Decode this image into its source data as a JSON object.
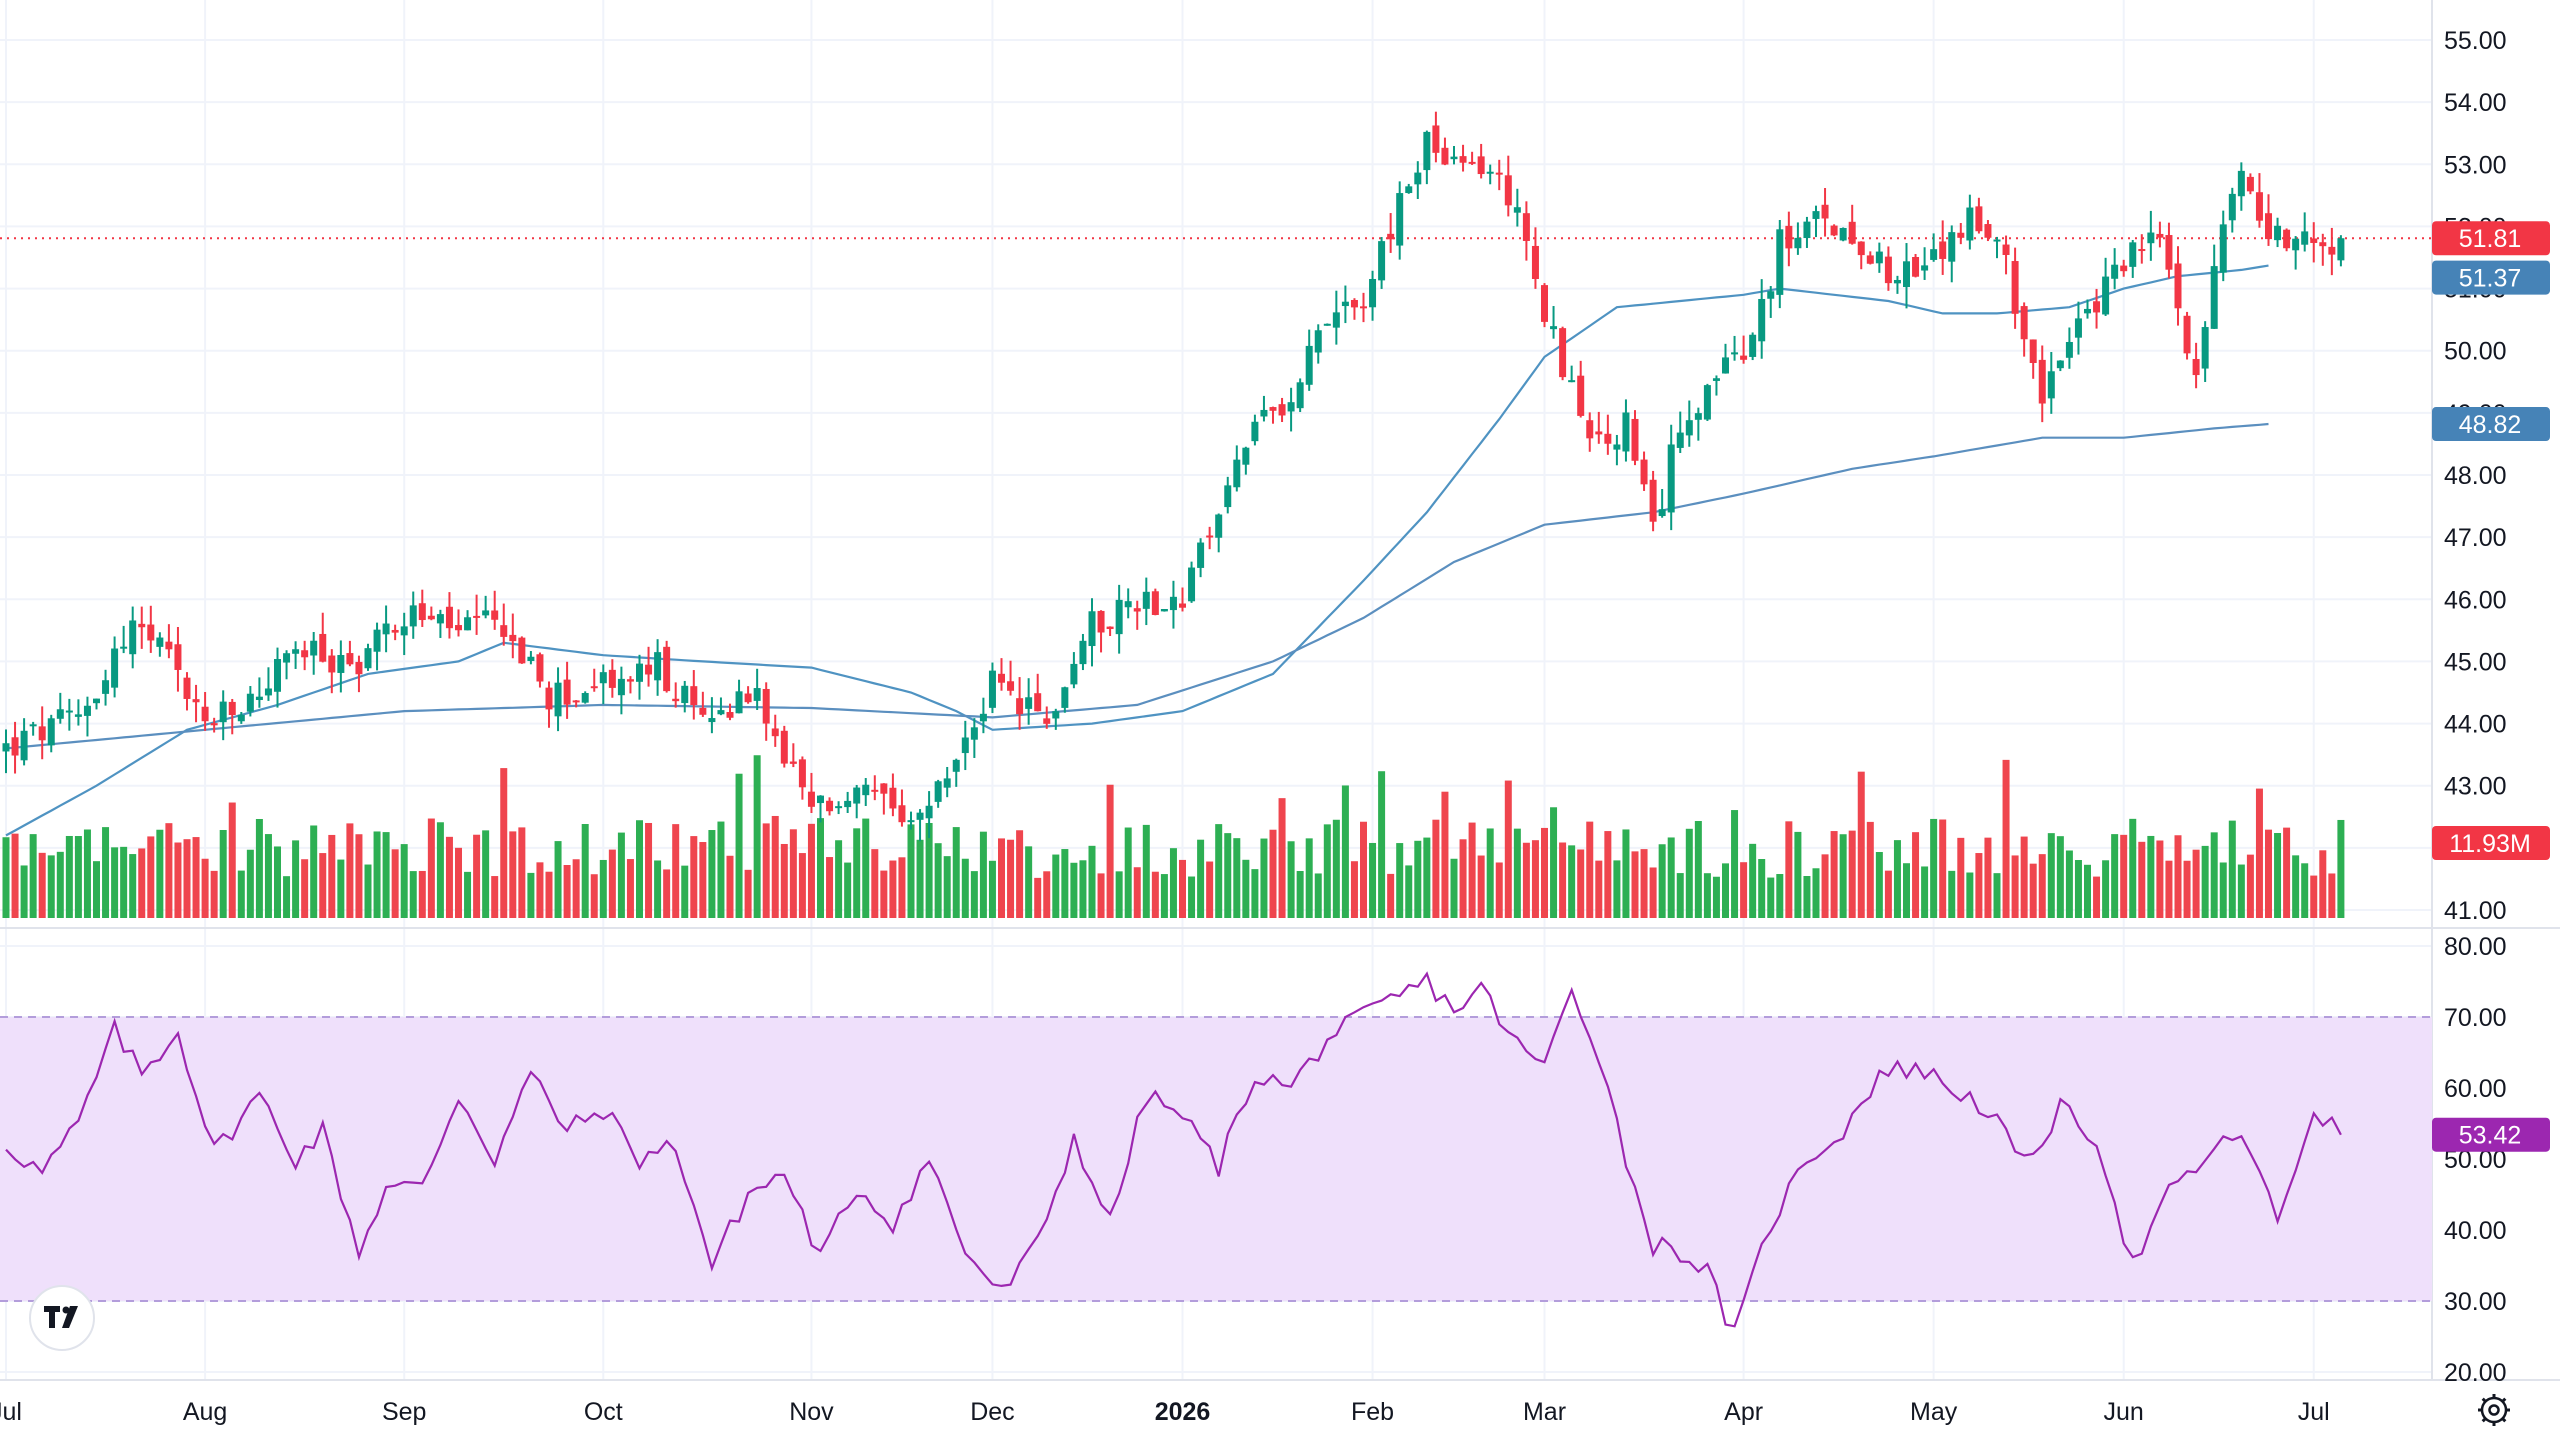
{
  "colors": {
    "up": "#089981",
    "down": "#f23645",
    "volume_up": "#22ab4a",
    "volume_down": "#ee3b44",
    "ma_fast": "#4f93c2",
    "ma_slow": "#5b8fbf",
    "rsi_line": "#9c27b0",
    "rsi_band": "#efe0fb",
    "grid": "#f0f3fa",
    "price_tag": "#f23645",
    "ma_fast_tag": "#4683b7",
    "ma_slow_tag": "#4683b7",
    "volume_tag": "#f23645",
    "rsi_tag": "#9c27b0"
  },
  "price_axis": {
    "labels": [
      "55.00",
      "54.00",
      "53.00",
      "52.00",
      "51.00",
      "50.00",
      "49.00",
      "48.00",
      "47.00",
      "46.00",
      "45.00",
      "44.00",
      "43.00",
      "42.00",
      "41.00"
    ],
    "values": [
      55,
      54,
      53,
      52,
      51,
      50,
      49,
      48,
      47,
      46,
      45,
      44,
      43,
      42,
      41
    ]
  },
  "rsi_axis": {
    "labels": [
      "80.00",
      "70.00",
      "60.00",
      "50.00",
      "40.00",
      "30.00",
      "20.00"
    ],
    "values": [
      80,
      70,
      60,
      50,
      40,
      30,
      20
    ]
  },
  "time_axis": {
    "labels": [
      "Jul",
      "Aug",
      "Sep",
      "Oct",
      "Nov",
      "Dec",
      "2026",
      "Feb",
      "Mar",
      "Apr",
      "May",
      "Jun",
      "Jul"
    ],
    "bold": [
      false,
      false,
      false,
      false,
      false,
      false,
      true,
      false,
      false,
      false,
      false,
      false,
      false
    ],
    "bar_index": [
      0,
      22,
      44,
      66,
      89,
      109,
      130,
      151,
      170,
      192,
      213,
      234,
      255
    ]
  },
  "tags": {
    "last_price": "51.81",
    "ma_fast": "51.37",
    "ma_slow": "48.82",
    "volume": "11.93M",
    "rsi": "53.42"
  },
  "chart_data": [
    {
      "type": "candlestick",
      "description": "Daily price candles (OHLC) with two moving averages; values from an anchored reconstruction",
      "ylim": [
        40.8,
        55.6
      ],
      "anchors": [
        [
          0,
          43.6
        ],
        [
          8,
          44.1
        ],
        [
          14,
          45.6
        ],
        [
          18,
          45.0
        ],
        [
          22,
          44.0
        ],
        [
          26,
          44.2
        ],
        [
          32,
          45.2
        ],
        [
          38,
          44.9
        ],
        [
          44,
          45.8
        ],
        [
          50,
          45.5
        ],
        [
          55,
          45.6
        ],
        [
          60,
          44.4
        ],
        [
          66,
          44.6
        ],
        [
          72,
          44.9
        ],
        [
          77,
          44.0
        ],
        [
          82,
          44.6
        ],
        [
          89,
          42.6
        ],
        [
          95,
          42.9
        ],
        [
          100,
          42.2
        ],
        [
          105,
          43.4
        ],
        [
          109,
          44.6
        ],
        [
          115,
          44.0
        ],
        [
          120,
          45.6
        ],
        [
          125,
          46.0
        ],
        [
          130,
          46.0
        ],
        [
          134,
          47.4
        ],
        [
          137,
          48.6
        ],
        [
          141,
          49.0
        ],
        [
          145,
          50.5
        ],
        [
          150,
          50.9
        ],
        [
          154,
          52.3
        ],
        [
          157,
          53.4
        ],
        [
          160,
          52.9
        ],
        [
          163,
          53.0
        ],
        [
          167,
          52.4
        ],
        [
          170,
          50.6
        ],
        [
          173,
          49.4
        ],
        [
          176,
          48.4
        ],
        [
          179,
          48.8
        ],
        [
          182,
          47.0
        ],
        [
          185,
          48.9
        ],
        [
          189,
          49.6
        ],
        [
          192,
          49.8
        ],
        [
          196,
          51.7
        ],
        [
          201,
          52.1
        ],
        [
          205,
          51.8
        ],
        [
          209,
          51.2
        ],
        [
          213,
          51.4
        ],
        [
          217,
          52.2
        ],
        [
          221,
          51.3
        ],
        [
          225,
          49.4
        ],
        [
          229,
          50.3
        ],
        [
          234,
          51.5
        ],
        [
          238,
          51.8
        ],
        [
          242,
          49.7
        ],
        [
          246,
          52.7
        ],
        [
          248,
          52.6
        ],
        [
          250,
          51.9
        ],
        [
          255,
          51.81
        ]
      ],
      "ma_fast_anchors": [
        [
          0,
          42.2
        ],
        [
          10,
          43.0
        ],
        [
          20,
          43.9
        ],
        [
          30,
          44.3
        ],
        [
          40,
          44.8
        ],
        [
          50,
          45.0
        ],
        [
          55,
          45.3
        ],
        [
          66,
          45.1
        ],
        [
          77,
          45.0
        ],
        [
          89,
          44.9
        ],
        [
          100,
          44.5
        ],
        [
          105,
          44.2
        ],
        [
          109,
          43.9
        ],
        [
          120,
          44.0
        ],
        [
          130,
          44.2
        ],
        [
          140,
          44.8
        ],
        [
          150,
          46.3
        ],
        [
          157,
          47.4
        ],
        [
          165,
          48.9
        ],
        [
          170,
          49.9
        ],
        [
          178,
          50.7
        ],
        [
          185,
          50.8
        ],
        [
          192,
          50.9
        ],
        [
          196,
          51.0
        ],
        [
          202,
          50.9
        ],
        [
          208,
          50.8
        ],
        [
          214,
          50.6
        ],
        [
          220,
          50.6
        ],
        [
          228,
          50.7
        ],
        [
          234,
          51.0
        ],
        [
          240,
          51.2
        ],
        [
          247,
          51.3
        ],
        [
          250,
          51.37
        ]
      ],
      "ma_slow_anchors": [
        [
          0,
          43.6
        ],
        [
          22,
          43.9
        ],
        [
          44,
          44.2
        ],
        [
          66,
          44.3
        ],
        [
          89,
          44.25
        ],
        [
          109,
          44.1
        ],
        [
          125,
          44.3
        ],
        [
          140,
          45.0
        ],
        [
          150,
          45.7
        ],
        [
          160,
          46.6
        ],
        [
          170,
          47.2
        ],
        [
          182,
          47.4
        ],
        [
          192,
          47.7
        ],
        [
          204,
          48.1
        ],
        [
          213,
          48.3
        ],
        [
          225,
          48.6
        ],
        [
          234,
          48.6
        ],
        [
          244,
          48.75
        ],
        [
          250,
          48.82
        ]
      ],
      "last_price": 51.81
    },
    {
      "type": "bar",
      "description": "Daily volume bars",
      "value_tag": "11.93M"
    },
    {
      "type": "line",
      "description": "RSI indicator",
      "ylim": [
        20,
        80
      ],
      "band": [
        30,
        70
      ],
      "anchors": [
        [
          0,
          52
        ],
        [
          4,
          48
        ],
        [
          8,
          55
        ],
        [
          12,
          68
        ],
        [
          15,
          62
        ],
        [
          19,
          68
        ],
        [
          23,
          51
        ],
        [
          28,
          59
        ],
        [
          32,
          50
        ],
        [
          35,
          54
        ],
        [
          39,
          37
        ],
        [
          42,
          46
        ],
        [
          46,
          46
        ],
        [
          50,
          59
        ],
        [
          54,
          50
        ],
        [
          58,
          62
        ],
        [
          62,
          54
        ],
        [
          66,
          57
        ],
        [
          70,
          50
        ],
        [
          74,
          52
        ],
        [
          78,
          35
        ],
        [
          82,
          45
        ],
        [
          86,
          48
        ],
        [
          90,
          36
        ],
        [
          94,
          46
        ],
        [
          98,
          41
        ],
        [
          102,
          50
        ],
        [
          106,
          37
        ],
        [
          110,
          31
        ],
        [
          114,
          38
        ],
        [
          118,
          53
        ],
        [
          122,
          41
        ],
        [
          126,
          59
        ],
        [
          130,
          56
        ],
        [
          134,
          49
        ],
        [
          138,
          62
        ],
        [
          142,
          60
        ],
        [
          146,
          67
        ],
        [
          150,
          70
        ],
        [
          154,
          73
        ],
        [
          157,
          75
        ],
        [
          160,
          71
        ],
        [
          163,
          74
        ],
        [
          167,
          66
        ],
        [
          170,
          63
        ],
        [
          173,
          74
        ],
        [
          176,
          65
        ],
        [
          179,
          50
        ],
        [
          182,
          38
        ],
        [
          185,
          37
        ],
        [
          188,
          34
        ],
        [
          191,
          25
        ],
        [
          195,
          41
        ],
        [
          199,
          50
        ],
        [
          203,
          54
        ],
        [
          207,
          62
        ],
        [
          211,
          63
        ],
        [
          215,
          60
        ],
        [
          219,
          57
        ],
        [
          223,
          49
        ],
        [
          227,
          57
        ],
        [
          231,
          53
        ],
        [
          235,
          35
        ],
        [
          239,
          45
        ],
        [
          243,
          50
        ],
        [
          247,
          54
        ],
        [
          251,
          41
        ],
        [
          255,
          57
        ],
        [
          258,
          53.42
        ]
      ]
    }
  ]
}
